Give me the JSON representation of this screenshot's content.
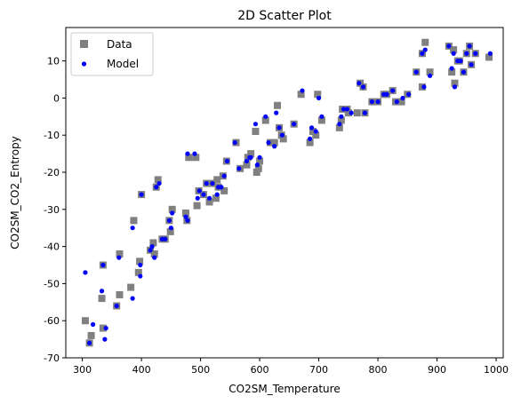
{
  "chart_data": {
    "type": "scatter",
    "title": "2D Scatter Plot",
    "xlabel": "CO2SM_Temperature",
    "ylabel": "CO2SM_CO2_Entropy",
    "xlim": [
      272,
      1012
    ],
    "ylim": [
      -70,
      19
    ],
    "xticks": [
      300,
      400,
      500,
      600,
      700,
      800,
      900,
      1000
    ],
    "yticks": [
      -70,
      -60,
      -50,
      -40,
      -30,
      -20,
      -10,
      0,
      10
    ],
    "grid": false,
    "legend_position": "top-left",
    "series": [
      {
        "name": "Data",
        "marker": "square",
        "color": "#808080",
        "points": [
          [
            305,
            -60
          ],
          [
            312,
            -66
          ],
          [
            315,
            -64
          ],
          [
            333,
            -54
          ],
          [
            335,
            -45
          ],
          [
            335,
            -62
          ],
          [
            358,
            -56
          ],
          [
            363,
            -53
          ],
          [
            363,
            -42
          ],
          [
            382,
            -51
          ],
          [
            387,
            -33
          ],
          [
            395,
            -47
          ],
          [
            397,
            -44
          ],
          [
            400,
            -26
          ],
          [
            415,
            -41
          ],
          [
            420,
            -39
          ],
          [
            422,
            -42
          ],
          [
            425,
            -24
          ],
          [
            428,
            -22
          ],
          [
            435,
            -38
          ],
          [
            440,
            -38
          ],
          [
            447,
            -33
          ],
          [
            449,
            -36
          ],
          [
            452,
            -30
          ],
          [
            475,
            -31
          ],
          [
            477,
            -33
          ],
          [
            480,
            -16
          ],
          [
            492,
            -16
          ],
          [
            494,
            -29
          ],
          [
            497,
            -25
          ],
          [
            505,
            -26
          ],
          [
            510,
            -23
          ],
          [
            515,
            -28
          ],
          [
            520,
            -23
          ],
          [
            526,
            -27
          ],
          [
            528,
            -22
          ],
          [
            530,
            -24
          ],
          [
            538,
            -21
          ],
          [
            540,
            -25
          ],
          [
            544,
            -17
          ],
          [
            560,
            -12
          ],
          [
            567,
            -19
          ],
          [
            578,
            -18
          ],
          [
            580,
            -16
          ],
          [
            585,
            -15
          ],
          [
            593,
            -9
          ],
          [
            595,
            -20
          ],
          [
            598,
            -19
          ],
          [
            600,
            -17
          ],
          [
            610,
            -6
          ],
          [
            618,
            -12
          ],
          [
            625,
            -12
          ],
          [
            630,
            -2
          ],
          [
            633,
            -8
          ],
          [
            637,
            -10
          ],
          [
            640,
            -11
          ],
          [
            658,
            -7
          ],
          [
            670,
            1
          ],
          [
            685,
            -12
          ],
          [
            690,
            -9
          ],
          [
            695,
            -10
          ],
          [
            698,
            1
          ],
          [
            705,
            -6
          ],
          [
            735,
            -8
          ],
          [
            738,
            -6
          ],
          [
            740,
            -3
          ],
          [
            748,
            -3
          ],
          [
            750,
            -4
          ],
          [
            765,
            -4
          ],
          [
            770,
            4
          ],
          [
            775,
            3
          ],
          [
            778,
            -4
          ],
          [
            790,
            -1
          ],
          [
            800,
            -1
          ],
          [
            810,
            1
          ],
          [
            815,
            1
          ],
          [
            825,
            2
          ],
          [
            830,
            -1
          ],
          [
            840,
            -1
          ],
          [
            850,
            1
          ],
          [
            865,
            7
          ],
          [
            875,
            12
          ],
          [
            875,
            3
          ],
          [
            880,
            15
          ],
          [
            888,
            7
          ],
          [
            920,
            14
          ],
          [
            925,
            7
          ],
          [
            928,
            13
          ],
          [
            930,
            4
          ],
          [
            935,
            10
          ],
          [
            938,
            10
          ],
          [
            945,
            7
          ],
          [
            950,
            12
          ],
          [
            955,
            14
          ],
          [
            958,
            9
          ],
          [
            965,
            12
          ],
          [
            988,
            11
          ]
        ]
      },
      {
        "name": "Model",
        "marker": "circle",
        "color": "#0000ff",
        "points": [
          [
            305,
            -47
          ],
          [
            312,
            -66
          ],
          [
            318,
            -61
          ],
          [
            333,
            -52
          ],
          [
            335,
            -45
          ],
          [
            338,
            -65
          ],
          [
            340,
            -62
          ],
          [
            358,
            -56
          ],
          [
            362,
            -43
          ],
          [
            385,
            -54
          ],
          [
            385,
            -35
          ],
          [
            398,
            -48
          ],
          [
            398,
            -45
          ],
          [
            400,
            -26
          ],
          [
            415,
            -41
          ],
          [
            418,
            -40
          ],
          [
            422,
            -43
          ],
          [
            425,
            -24
          ],
          [
            430,
            -23
          ],
          [
            435,
            -38
          ],
          [
            440,
            -38
          ],
          [
            447,
            -33
          ],
          [
            450,
            -35
          ],
          [
            452,
            -31
          ],
          [
            475,
            -32
          ],
          [
            478,
            -33
          ],
          [
            478,
            -15
          ],
          [
            490,
            -15
          ],
          [
            495,
            -27
          ],
          [
            498,
            -25
          ],
          [
            505,
            -26
          ],
          [
            510,
            -23
          ],
          [
            515,
            -27
          ],
          [
            520,
            -23
          ],
          [
            528,
            -26
          ],
          [
            530,
            -24
          ],
          [
            535,
            -24
          ],
          [
            540,
            -21
          ],
          [
            545,
            -17
          ],
          [
            558,
            -12
          ],
          [
            565,
            -19
          ],
          [
            578,
            -17
          ],
          [
            583,
            -16
          ],
          [
            585,
            -16
          ],
          [
            593,
            -7
          ],
          [
            596,
            -18
          ],
          [
            600,
            -16
          ],
          [
            610,
            -5
          ],
          [
            615,
            -12
          ],
          [
            625,
            -13
          ],
          [
            628,
            -4
          ],
          [
            633,
            -8
          ],
          [
            638,
            -10
          ],
          [
            658,
            -7
          ],
          [
            672,
            2
          ],
          [
            685,
            -11
          ],
          [
            688,
            -8
          ],
          [
            695,
            -9
          ],
          [
            700,
            0
          ],
          [
            705,
            -5
          ],
          [
            735,
            -7
          ],
          [
            738,
            -5
          ],
          [
            742,
            -3
          ],
          [
            748,
            -3
          ],
          [
            755,
            -4
          ],
          [
            768,
            4
          ],
          [
            775,
            3
          ],
          [
            778,
            -4
          ],
          [
            790,
            -1
          ],
          [
            800,
            -1
          ],
          [
            810,
            1
          ],
          [
            815,
            1
          ],
          [
            825,
            2
          ],
          [
            832,
            -1
          ],
          [
            842,
            0
          ],
          [
            852,
            1
          ],
          [
            865,
            7
          ],
          [
            875,
            12
          ],
          [
            878,
            3
          ],
          [
            880,
            13
          ],
          [
            888,
            6
          ],
          [
            920,
            14
          ],
          [
            925,
            8
          ],
          [
            928,
            12
          ],
          [
            930,
            3
          ],
          [
            935,
            10
          ],
          [
            940,
            10
          ],
          [
            945,
            7
          ],
          [
            950,
            12
          ],
          [
            955,
            14
          ],
          [
            958,
            9
          ],
          [
            965,
            12
          ],
          [
            990,
            12
          ]
        ]
      }
    ]
  }
}
